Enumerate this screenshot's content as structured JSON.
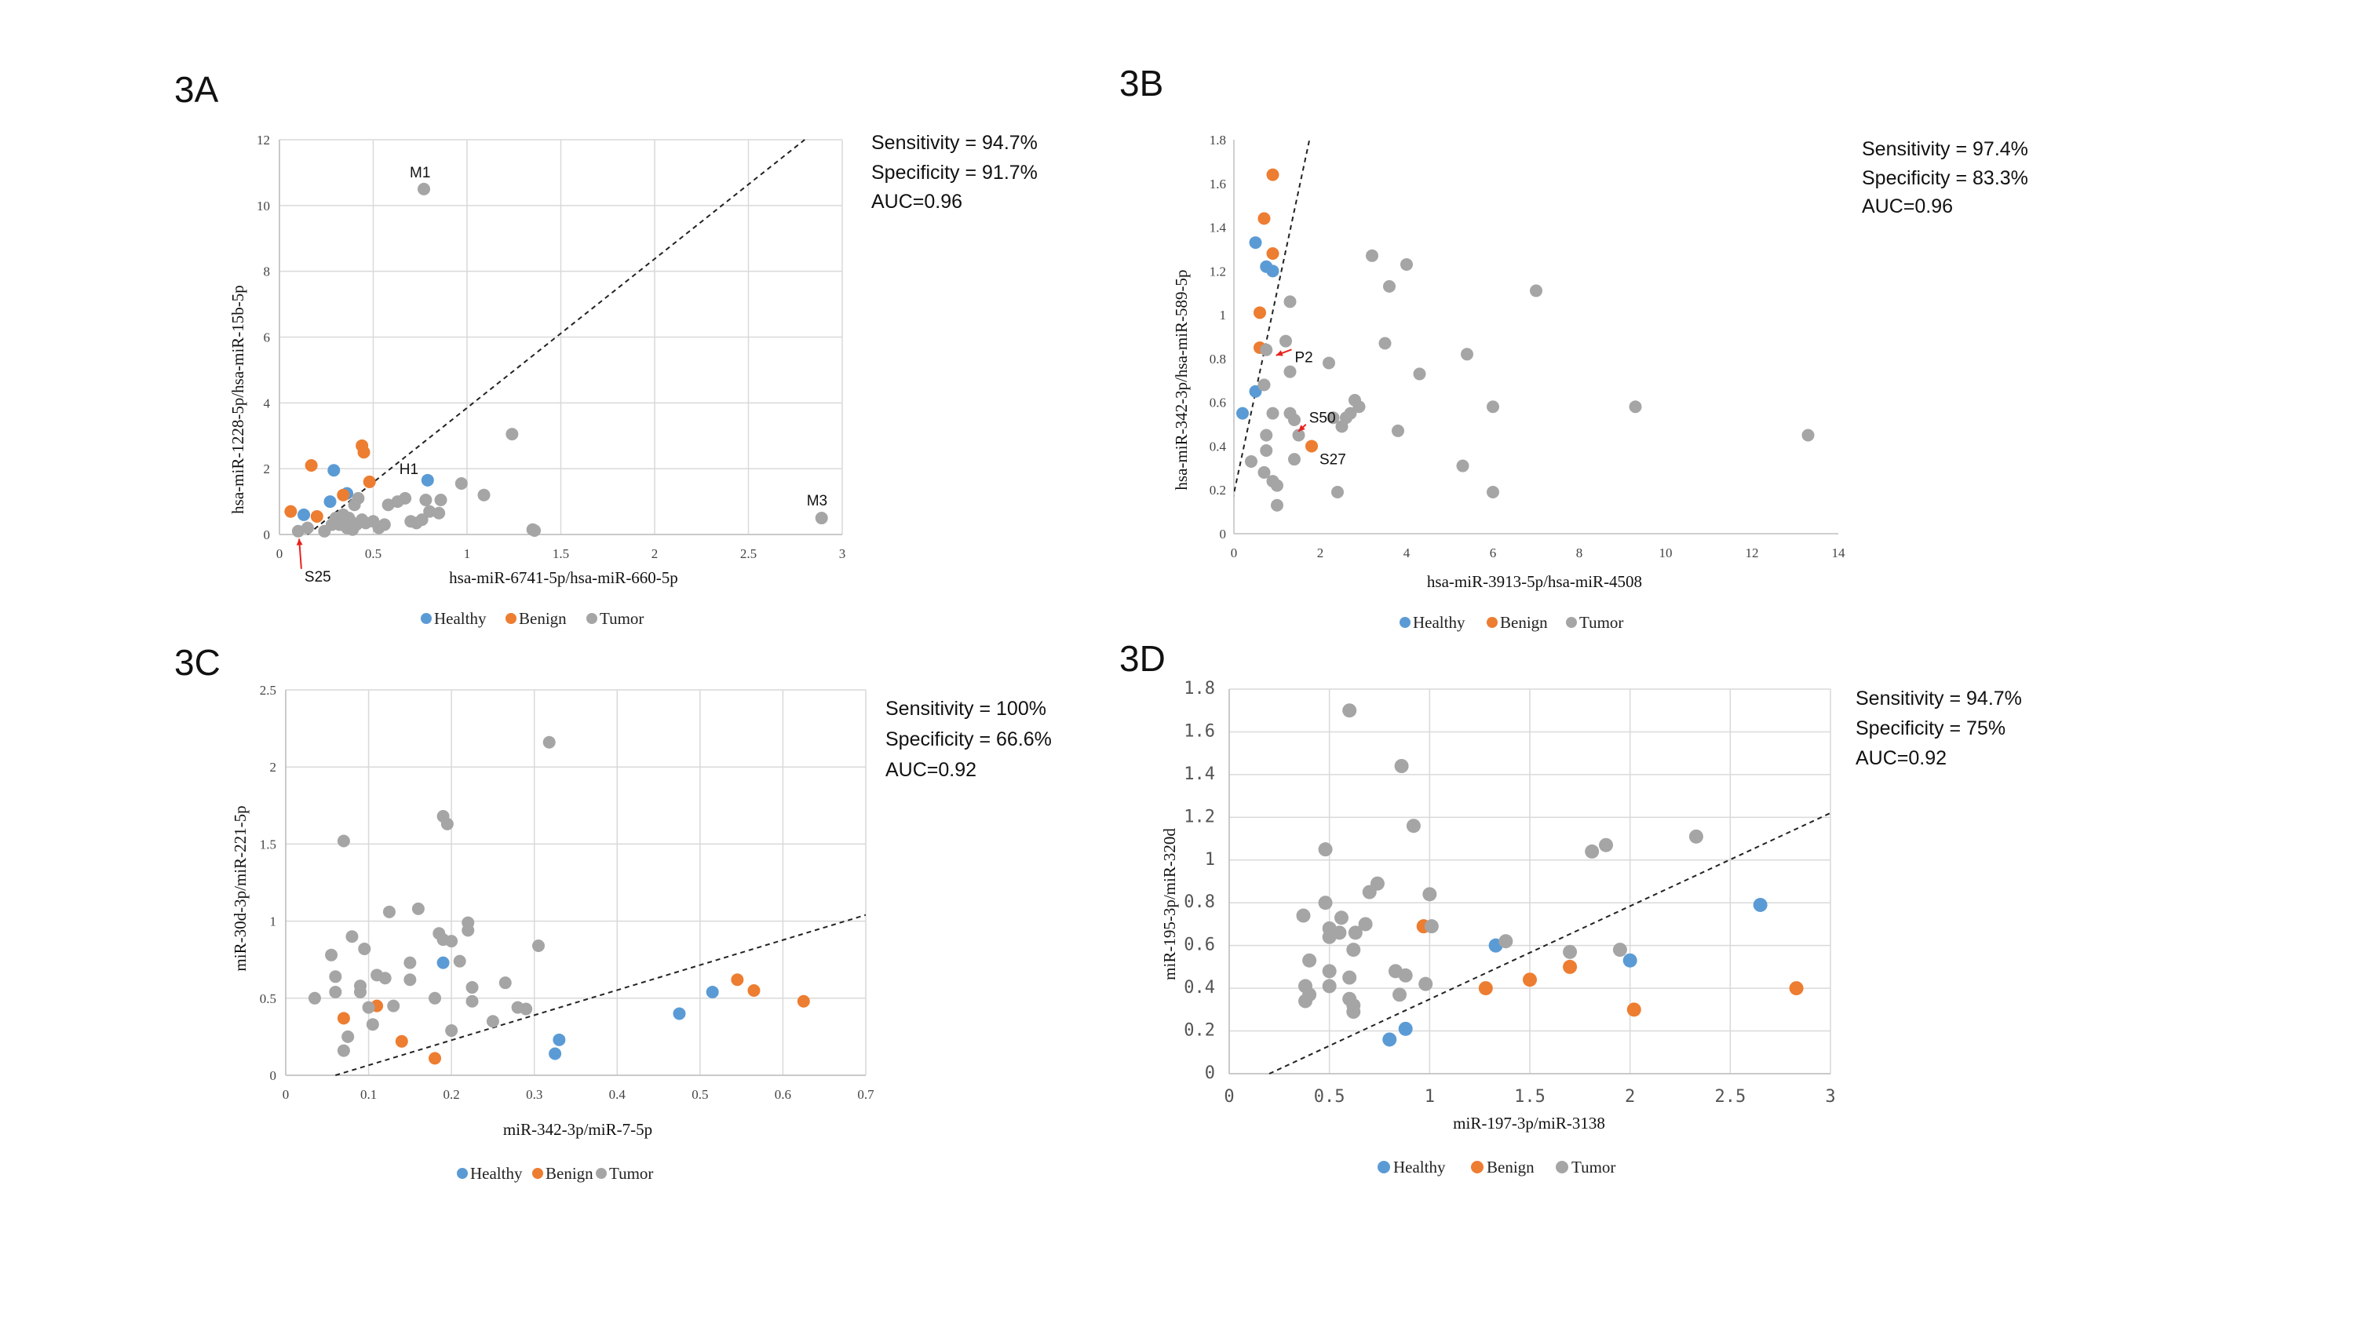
{
  "colors": {
    "Healthy": "#5b9bd5",
    "Benign": "#ed7d31",
    "Tumor": "#a5a5a5",
    "arrow": "#e8231e"
  },
  "chart_data": [
    {
      "id": "A",
      "type": "scatter",
      "panel_label": "3A",
      "xlabel": "hsa-miR-6741-5p/hsa-miR-660-5p",
      "ylabel": "hsa-miR-1228-5p/hsa-miR-15b-5p",
      "xlim": [
        0,
        3
      ],
      "ylim": [
        0,
        12
      ],
      "xticks": [
        0,
        0.5,
        1,
        1.5,
        2,
        2.5,
        3
      ],
      "xtick_labels": [
        "0",
        "0.5",
        "1",
        "1.5",
        "2",
        "2.5",
        "3"
      ],
      "yticks": [
        0,
        2,
        4,
        6,
        8,
        10,
        12
      ],
      "ytick_labels": [
        "0",
        "2",
        "4",
        "6",
        "8",
        "10",
        "12"
      ],
      "grid": true,
      "stats": [
        "Sensitivity = 94.7%",
        "Specificity = 91.7%",
        "AUC=0.96"
      ],
      "legend": [
        "Healthy",
        "Benign",
        "Tumor"
      ],
      "cutoff_line": {
        "x1": 0.15,
        "y1": 0,
        "x2": 2.8,
        "y2": 12
      },
      "series": [
        {
          "name": "Healthy",
          "points": [
            [
              0.13,
              0.6
            ],
            [
              0.27,
              1.0
            ],
            [
              0.29,
              1.95
            ],
            [
              0.79,
              1.65
            ],
            [
              0.36,
              1.25
            ]
          ]
        },
        {
          "name": "Benign",
          "points": [
            [
              0.06,
              0.7
            ],
            [
              0.17,
              2.1
            ],
            [
              0.34,
              1.2
            ],
            [
              0.44,
              2.7
            ],
            [
              0.45,
              2.5
            ],
            [
              0.48,
              1.6
            ],
            [
              0.2,
              0.55
            ]
          ]
        },
        {
          "name": "Tumor",
          "points": [
            [
              0.1,
              0.1
            ],
            [
              0.15,
              0.2
            ],
            [
              0.24,
              0.1
            ],
            [
              0.28,
              0.3
            ],
            [
              0.3,
              0.5
            ],
            [
              0.32,
              0.3
            ],
            [
              0.34,
              0.6
            ],
            [
              0.36,
              0.2
            ],
            [
              0.37,
              0.5
            ],
            [
              0.38,
              0.4
            ],
            [
              0.39,
              0.15
            ],
            [
              0.4,
              0.9
            ],
            [
              0.41,
              0.3
            ],
            [
              0.42,
              1.1
            ],
            [
              0.44,
              0.45
            ],
            [
              0.46,
              0.35
            ],
            [
              0.5,
              0.4
            ],
            [
              0.53,
              0.2
            ],
            [
              0.56,
              0.3
            ],
            [
              0.58,
              0.9
            ],
            [
              0.63,
              1.0
            ],
            [
              0.67,
              1.1
            ],
            [
              0.7,
              0.4
            ],
            [
              0.73,
              0.35
            ],
            [
              0.76,
              0.45
            ],
            [
              0.78,
              1.05
            ],
            [
              0.8,
              0.7
            ],
            [
              0.85,
              0.65
            ],
            [
              0.86,
              1.05
            ],
            [
              0.97,
              1.55
            ],
            [
              1.09,
              1.2
            ],
            [
              1.24,
              3.05
            ],
            [
              1.35,
              0.15
            ],
            [
              1.36,
              0.12
            ],
            [
              0.77,
              10.5
            ],
            [
              2.89,
              0.5
            ]
          ]
        }
      ],
      "annotations": [
        {
          "text": "M1",
          "x": 0.77,
          "y": 10.5
        },
        {
          "text": "M3",
          "x": 2.89,
          "y": 0.5
        },
        {
          "text": "H1",
          "x": 0.79,
          "y": 1.65
        },
        {
          "text": "S25",
          "x": 0.1,
          "y": 0.1,
          "arrow": true
        }
      ]
    },
    {
      "id": "B",
      "type": "scatter",
      "panel_label": "3B",
      "xlabel": "hsa-miR-3913-5p/hsa-miR-4508",
      "ylabel": "hsa-miR-342-3p/hsa-miR-589-5p",
      "xlim": [
        0,
        14
      ],
      "ylim": [
        0,
        1.8
      ],
      "xticks": [
        0,
        2,
        4,
        6,
        8,
        10,
        12,
        14
      ],
      "xtick_labels": [
        "0",
        "2",
        "4",
        "6",
        "8",
        "10",
        "12",
        "14"
      ],
      "yticks": [
        0,
        0.2,
        0.4,
        0.6,
        0.8,
        1,
        1.2,
        1.4,
        1.6,
        1.8
      ],
      "ytick_labels": [
        "0",
        "0.2",
        "0.4",
        "0.6",
        "0.8",
        "1",
        "1.2",
        "1.4",
        "1.6",
        "1.8"
      ],
      "grid": false,
      "stats": [
        "Sensitivity = 97.4%",
        "Specificity = 83.3%",
        "AUC=0.96"
      ],
      "legend": [
        "Healthy",
        "Benign",
        "Tumor"
      ],
      "cutoff_line": {
        "x1": -0.2,
        "y1": 0,
        "x2": 1.75,
        "y2": 1.8
      },
      "series": [
        {
          "name": "Healthy",
          "points": [
            [
              0.2,
              0.55
            ],
            [
              0.5,
              1.33
            ],
            [
              0.5,
              0.65
            ],
            [
              0.75,
              1.22
            ],
            [
              0.9,
              1.2
            ]
          ]
        },
        {
          "name": "Benign",
          "points": [
            [
              0.6,
              1.01
            ],
            [
              0.7,
              1.44
            ],
            [
              0.9,
              1.64
            ],
            [
              0.9,
              1.28
            ],
            [
              0.6,
              0.85
            ],
            [
              1.8,
              0.4
            ]
          ]
        },
        {
          "name": "Tumor",
          "points": [
            [
              0.4,
              0.33
            ],
            [
              0.7,
              0.28
            ],
            [
              0.7,
              0.68
            ],
            [
              0.75,
              0.38
            ],
            [
              0.75,
              0.45
            ],
            [
              0.9,
              0.24
            ],
            [
              0.9,
              0.55
            ],
            [
              1.0,
              0.13
            ],
            [
              1.0,
              0.22
            ],
            [
              1.2,
              0.88
            ],
            [
              1.3,
              1.06
            ],
            [
              1.3,
              0.74
            ],
            [
              1.3,
              0.55
            ],
            [
              1.4,
              0.52
            ],
            [
              1.4,
              0.34
            ],
            [
              1.5,
              0.45
            ],
            [
              2.2,
              0.78
            ],
            [
              2.3,
              0.53
            ],
            [
              2.4,
              0.19
            ],
            [
              2.5,
              0.49
            ],
            [
              2.6,
              0.53
            ],
            [
              2.7,
              0.55
            ],
            [
              2.8,
              0.61
            ],
            [
              2.9,
              0.58
            ],
            [
              3.2,
              1.27
            ],
            [
              3.5,
              0.87
            ],
            [
              3.6,
              1.13
            ],
            [
              3.8,
              0.47
            ],
            [
              4.0,
              1.23
            ],
            [
              4.3,
              0.73
            ],
            [
              5.3,
              0.31
            ],
            [
              5.4,
              0.82
            ],
            [
              6.0,
              0.58
            ],
            [
              6.0,
              0.19
            ],
            [
              7.0,
              1.11
            ],
            [
              9.3,
              0.58
            ],
            [
              13.3,
              0.45
            ],
            [
              0.75,
              0.84
            ]
          ]
        }
      ],
      "annotations": [
        {
          "text": "P2",
          "x": 0.9,
          "y": 0.82,
          "arrow": true
        },
        {
          "text": "S50",
          "x": 1.45,
          "y": 0.46,
          "arrow": true
        },
        {
          "text": "S27",
          "x": 1.8,
          "y": 0.4
        }
      ]
    },
    {
      "id": "C",
      "type": "scatter",
      "panel_label": "3C",
      "xlabel": "miR-342-3p/miR-7-5p",
      "ylabel": "miR-30d-3p/miR-221-5p",
      "xlim": [
        0,
        0.7
      ],
      "ylim": [
        0,
        2.5
      ],
      "xticks": [
        0,
        0.1,
        0.2,
        0.3,
        0.4,
        0.5,
        0.6,
        0.7
      ],
      "xtick_labels": [
        "0",
        "0.1",
        "0.2",
        "0.3",
        "0.4",
        "0.5",
        "0.6",
        "0.7"
      ],
      "yticks": [
        0,
        0.5,
        1,
        1.5,
        2,
        2.5
      ],
      "ytick_labels": [
        "0",
        "0.5",
        "1",
        "1.5",
        "2",
        "2.5"
      ],
      "grid": true,
      "stats": [
        "Sensitivity = 100%",
        "Specificity = 66.6%",
        "AUC=0.92"
      ],
      "legend": [
        "Healthy",
        "Benign",
        "Tumor"
      ],
      "cutoff_line": {
        "x1": 0.06,
        "y1": 0,
        "x2": 0.7,
        "y2": 1.04
      },
      "series": [
        {
          "name": "Healthy",
          "points": [
            [
              0.19,
              0.73
            ],
            [
              0.33,
              0.23
            ],
            [
              0.325,
              0.14
            ],
            [
              0.475,
              0.4
            ],
            [
              0.515,
              0.54
            ]
          ]
        },
        {
          "name": "Benign",
          "points": [
            [
              0.07,
              0.37
            ],
            [
              0.11,
              0.45
            ],
            [
              0.14,
              0.22
            ],
            [
              0.18,
              0.11
            ],
            [
              0.545,
              0.62
            ],
            [
              0.565,
              0.55
            ],
            [
              0.625,
              0.48
            ]
          ]
        },
        {
          "name": "Tumor",
          "points": [
            [
              0.035,
              0.5
            ],
            [
              0.055,
              0.78
            ],
            [
              0.06,
              0.64
            ],
            [
              0.06,
              0.54
            ],
            [
              0.07,
              0.16
            ],
            [
              0.075,
              0.25
            ],
            [
              0.07,
              1.52
            ],
            [
              0.08,
              0.9
            ],
            [
              0.09,
              0.58
            ],
            [
              0.09,
              0.54
            ],
            [
              0.095,
              0.82
            ],
            [
              0.1,
              0.44
            ],
            [
              0.105,
              0.33
            ],
            [
              0.11,
              0.65
            ],
            [
              0.12,
              0.63
            ],
            [
              0.125,
              1.06
            ],
            [
              0.13,
              0.45
            ],
            [
              0.15,
              0.73
            ],
            [
              0.15,
              0.62
            ],
            [
              0.16,
              1.08
            ],
            [
              0.18,
              0.5
            ],
            [
              0.185,
              0.92
            ],
            [
              0.19,
              0.88
            ],
            [
              0.19,
              1.68
            ],
            [
              0.195,
              1.63
            ],
            [
              0.2,
              0.87
            ],
            [
              0.2,
              0.29
            ],
            [
              0.21,
              0.74
            ],
            [
              0.22,
              0.99
            ],
            [
              0.22,
              0.94
            ],
            [
              0.225,
              0.48
            ],
            [
              0.225,
              0.57
            ],
            [
              0.25,
              0.35
            ],
            [
              0.265,
              0.6
            ],
            [
              0.28,
              0.44
            ],
            [
              0.29,
              0.43
            ],
            [
              0.305,
              0.84
            ],
            [
              0.318,
              2.16
            ]
          ]
        }
      ],
      "annotations": []
    },
    {
      "id": "D",
      "type": "scatter",
      "panel_label": "3D",
      "xlabel": "miR-197-3p/miR-3138",
      "ylabel": "miR-195-3p/miR-320d",
      "xlim": [
        0,
        3
      ],
      "ylim": [
        0,
        1.8
      ],
      "xticks": [
        0,
        0.5,
        1,
        1.5,
        2,
        2.5,
        3
      ],
      "xtick_labels": [
        "0",
        "0.5",
        "1",
        "1.5",
        "2",
        "2.5",
        "3"
      ],
      "yticks": [
        0,
        0.2,
        0.4,
        0.6,
        0.8,
        1,
        1.2,
        1.4,
        1.6,
        1.8
      ],
      "ytick_labels": [
        "0",
        "0.2",
        "0.4",
        "0.6",
        "0.8",
        "1",
        "1.2",
        "1.4",
        "1.6",
        "1.8"
      ],
      "grid": true,
      "stats": [
        "Sensitivity = 94.7%",
        "Specificity = 75%",
        "AUC=0.92"
      ],
      "legend": [
        "Healthy",
        "Benign",
        "Tumor"
      ],
      "cutoff_line": {
        "x1": 0.2,
        "y1": 0,
        "x2": 3.0,
        "y2": 1.22
      },
      "series": [
        {
          "name": "Healthy",
          "points": [
            [
              0.8,
              0.16
            ],
            [
              0.88,
              0.21
            ],
            [
              1.33,
              0.6
            ],
            [
              2.0,
              0.53
            ],
            [
              2.65,
              0.79
            ]
          ]
        },
        {
          "name": "Benign",
          "points": [
            [
              0.97,
              0.69
            ],
            [
              1.28,
              0.4
            ],
            [
              1.5,
              0.44
            ],
            [
              1.7,
              0.5
            ],
            [
              2.02,
              0.3
            ],
            [
              2.83,
              0.4
            ]
          ]
        },
        {
          "name": "Tumor",
          "points": [
            [
              0.37,
              0.74
            ],
            [
              0.38,
              0.41
            ],
            [
              0.38,
              0.34
            ],
            [
              0.4,
              0.53
            ],
            [
              0.4,
              0.37
            ],
            [
              0.48,
              1.05
            ],
            [
              0.48,
              0.8
            ],
            [
              0.5,
              0.41
            ],
            [
              0.5,
              0.48
            ],
            [
              0.5,
              0.64
            ],
            [
              0.5,
              0.68
            ],
            [
              0.55,
              0.66
            ],
            [
              0.56,
              0.73
            ],
            [
              0.6,
              0.35
            ],
            [
              0.6,
              0.45
            ],
            [
              0.6,
              1.7
            ],
            [
              0.62,
              0.58
            ],
            [
              0.62,
              0.32
            ],
            [
              0.62,
              0.29
            ],
            [
              0.63,
              0.66
            ],
            [
              0.68,
              0.7
            ],
            [
              0.7,
              0.85
            ],
            [
              0.74,
              0.89
            ],
            [
              0.83,
              0.48
            ],
            [
              0.85,
              0.37
            ],
            [
              0.86,
              1.44
            ],
            [
              0.88,
              0.46
            ],
            [
              0.92,
              1.16
            ],
            [
              0.98,
              0.42
            ],
            [
              1.0,
              0.84
            ],
            [
              1.01,
              0.69
            ],
            [
              1.38,
              0.62
            ],
            [
              1.7,
              0.57
            ],
            [
              1.81,
              1.04
            ],
            [
              1.88,
              1.07
            ],
            [
              1.95,
              0.58
            ],
            [
              2.33,
              1.11
            ]
          ]
        }
      ],
      "annotations": []
    }
  ]
}
